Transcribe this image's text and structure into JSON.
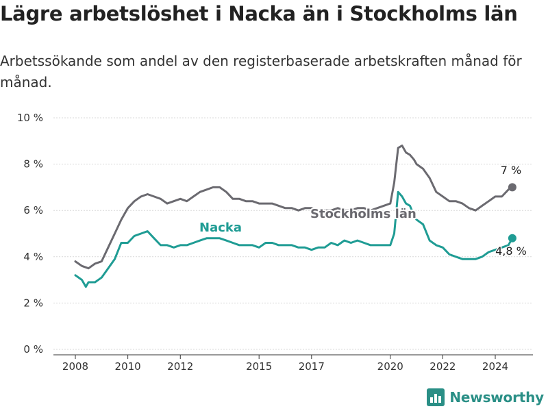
{
  "title": "Lägre arbetslöshet i Nacka än i Stockholms län",
  "subtitle": "Arbetssökande som andel av den registerbaserade arbetskraften månad för månad.",
  "brand": {
    "name": "Newsworthy",
    "icon": "bar-chart-logo-icon",
    "color": "#2a8f86"
  },
  "colors": {
    "stockholm": "#6b6a70",
    "nacka": "#1f9c94",
    "grid": "#d9d9d9"
  },
  "chart_data": {
    "type": "line",
    "title": "Lägre arbetslöshet i Nacka än i Stockholms län",
    "subtitle": "Arbetssökande som andel av den registerbaserade arbetskraften månad för månad.",
    "xlabel": "",
    "ylabel": "",
    "x_range": [
      2008.0,
      2024.75
    ],
    "ylim": [
      0,
      10
    ],
    "y_ticks": [
      0,
      2,
      4,
      6,
      8,
      10
    ],
    "y_tick_labels": [
      "0 %",
      "2 %",
      "4 %",
      "6 %",
      "8 %",
      "10 %"
    ],
    "x_ticks": [
      2008,
      2010,
      2012,
      2015,
      2017,
      2020,
      2022,
      2024
    ],
    "x_tick_labels": [
      "2008",
      "2010",
      "2012",
      "2015",
      "2017",
      "2020",
      "2022",
      "2024"
    ],
    "grid": "horizontal",
    "series": [
      {
        "name": "Stockholms län",
        "end_label": "7 %",
        "x": [
          2008.0,
          2008.25,
          2008.5,
          2008.75,
          2009.0,
          2009.25,
          2009.5,
          2009.75,
          2010.0,
          2010.25,
          2010.5,
          2010.75,
          2011.0,
          2011.25,
          2011.5,
          2011.75,
          2012.0,
          2012.25,
          2012.5,
          2012.75,
          2013.0,
          2013.25,
          2013.5,
          2013.75,
          2014.0,
          2014.25,
          2014.5,
          2014.75,
          2015.0,
          2015.25,
          2015.5,
          2015.75,
          2016.0,
          2016.25,
          2016.5,
          2016.75,
          2017.0,
          2017.25,
          2017.5,
          2017.75,
          2018.0,
          2018.25,
          2018.5,
          2018.75,
          2019.0,
          2019.25,
          2019.5,
          2019.75,
          2020.0,
          2020.15,
          2020.3,
          2020.45,
          2020.6,
          2020.75,
          2020.9,
          2021.0,
          2021.25,
          2021.5,
          2021.75,
          2022.0,
          2022.25,
          2022.5,
          2022.75,
          2023.0,
          2023.25,
          2023.5,
          2023.75,
          2024.0,
          2024.25,
          2024.5,
          2024.65
        ],
        "values": [
          3.8,
          3.6,
          3.5,
          3.7,
          3.8,
          4.4,
          5.0,
          5.6,
          6.1,
          6.4,
          6.6,
          6.7,
          6.6,
          6.5,
          6.3,
          6.4,
          6.5,
          6.4,
          6.6,
          6.8,
          6.9,
          7.0,
          7.0,
          6.8,
          6.5,
          6.5,
          6.4,
          6.4,
          6.3,
          6.3,
          6.3,
          6.2,
          6.1,
          6.1,
          6.0,
          6.1,
          6.1,
          6.0,
          6.0,
          6.0,
          6.1,
          6.0,
          6.0,
          6.1,
          6.1,
          6.0,
          6.1,
          6.2,
          6.3,
          7.2,
          8.7,
          8.8,
          8.5,
          8.4,
          8.2,
          8.0,
          7.8,
          7.4,
          6.8,
          6.6,
          6.4,
          6.4,
          6.3,
          6.1,
          6.0,
          6.2,
          6.4,
          6.6,
          6.6,
          6.9,
          7.0
        ]
      },
      {
        "name": "Nacka",
        "end_label": "4,8 %",
        "x": [
          2008.0,
          2008.25,
          2008.4,
          2008.5,
          2008.75,
          2009.0,
          2009.25,
          2009.5,
          2009.75,
          2010.0,
          2010.25,
          2010.5,
          2010.75,
          2011.0,
          2011.25,
          2011.5,
          2011.75,
          2012.0,
          2012.25,
          2012.5,
          2012.75,
          2013.0,
          2013.25,
          2013.5,
          2013.75,
          2014.0,
          2014.25,
          2014.5,
          2014.75,
          2015.0,
          2015.25,
          2015.5,
          2015.75,
          2016.0,
          2016.25,
          2016.5,
          2016.75,
          2017.0,
          2017.25,
          2017.5,
          2017.75,
          2018.0,
          2018.25,
          2018.5,
          2018.75,
          2019.0,
          2019.25,
          2019.5,
          2019.75,
          2020.0,
          2020.15,
          2020.3,
          2020.45,
          2020.6,
          2020.75,
          2020.9,
          2021.0,
          2021.25,
          2021.5,
          2021.75,
          2022.0,
          2022.25,
          2022.5,
          2022.75,
          2023.0,
          2023.25,
          2023.5,
          2023.75,
          2024.0,
          2024.25,
          2024.5,
          2024.65
        ],
        "values": [
          3.2,
          3.0,
          2.7,
          2.9,
          2.9,
          3.1,
          3.5,
          3.9,
          4.6,
          4.6,
          4.9,
          5.0,
          5.1,
          4.8,
          4.5,
          4.5,
          4.4,
          4.5,
          4.5,
          4.6,
          4.7,
          4.8,
          4.8,
          4.8,
          4.7,
          4.6,
          4.5,
          4.5,
          4.5,
          4.4,
          4.6,
          4.6,
          4.5,
          4.5,
          4.5,
          4.4,
          4.4,
          4.3,
          4.4,
          4.4,
          4.6,
          4.5,
          4.7,
          4.6,
          4.7,
          4.6,
          4.5,
          4.5,
          4.5,
          4.5,
          5.0,
          6.8,
          6.6,
          6.3,
          6.2,
          5.8,
          5.6,
          5.4,
          4.7,
          4.5,
          4.4,
          4.1,
          4.0,
          3.9,
          3.9,
          3.9,
          4.0,
          4.2,
          4.3,
          4.4,
          4.5,
          4.8
        ]
      }
    ]
  }
}
